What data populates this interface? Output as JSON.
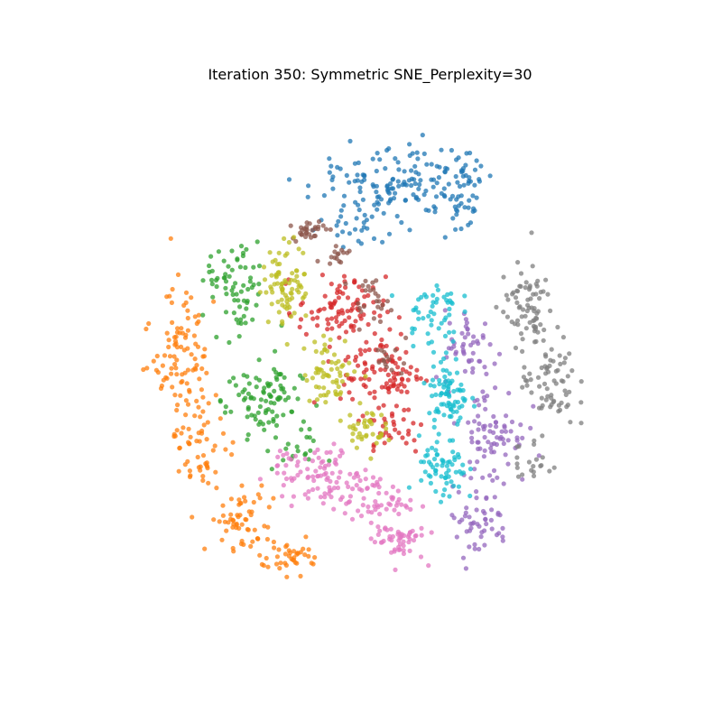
{
  "chart_data": {
    "type": "scatter",
    "title": "Iteration 350: Symmetric SNE_Perplexity=30",
    "xlabel": "",
    "ylabel": "",
    "axes_visible": false,
    "grid": false,
    "legend": "none",
    "xlim": [
      -100,
      100
    ],
    "ylim": [
      -100,
      100
    ],
    "point_alpha": 0.75,
    "series": [
      {
        "color": "#1f77b4",
        "clusters": [
          {
            "cx": 10,
            "cy": 66,
            "rx": 24,
            "ry": 14,
            "n": 150
          },
          {
            "cx": 34,
            "cy": 62,
            "rx": 5,
            "ry": 10,
            "n": 40
          },
          {
            "cx": -6,
            "cy": 50,
            "rx": 8,
            "ry": 6,
            "n": 20
          }
        ]
      },
      {
        "color": "#ff7f0e",
        "clusters": [
          {
            "cx": -68,
            "cy": 6,
            "rx": 8,
            "ry": 18,
            "n": 90
          },
          {
            "cx": -60,
            "cy": -28,
            "rx": 10,
            "ry": 14,
            "n": 60
          },
          {
            "cx": -46,
            "cy": -55,
            "rx": 10,
            "ry": 10,
            "n": 60
          },
          {
            "cx": -28,
            "cy": -68,
            "rx": 10,
            "ry": 5,
            "n": 40
          }
        ]
      },
      {
        "color": "#2ca02c",
        "clusters": [
          {
            "cx": -48,
            "cy": 26,
            "rx": 9,
            "ry": 14,
            "n": 70
          },
          {
            "cx": -38,
            "cy": -12,
            "rx": 11,
            "ry": 12,
            "n": 90
          },
          {
            "cx": -28,
            "cy": -30,
            "rx": 8,
            "ry": 6,
            "n": 20
          }
        ]
      },
      {
        "color": "#d62728",
        "clusters": [
          {
            "cx": -10,
            "cy": 20,
            "rx": 13,
            "ry": 10,
            "n": 90
          },
          {
            "cx": 4,
            "cy": -2,
            "rx": 12,
            "ry": 12,
            "n": 100
          },
          {
            "cx": 8,
            "cy": -22,
            "rx": 10,
            "ry": 8,
            "n": 30
          }
        ]
      },
      {
        "color": "#9467bd",
        "clusters": [
          {
            "cx": 36,
            "cy": 6,
            "rx": 8,
            "ry": 12,
            "n": 50
          },
          {
            "cx": 44,
            "cy": -24,
            "rx": 10,
            "ry": 16,
            "n": 80
          },
          {
            "cx": 38,
            "cy": -56,
            "rx": 10,
            "ry": 10,
            "n": 50
          }
        ]
      },
      {
        "color": "#8c564b",
        "clusters": [
          {
            "cx": -22,
            "cy": 49,
            "rx": 5,
            "ry": 3,
            "n": 30
          },
          {
            "cx": -12,
            "cy": 40,
            "rx": 4,
            "ry": 3,
            "n": 15
          },
          {
            "cx": 0,
            "cy": 24,
            "rx": 6,
            "ry": 6,
            "n": 25
          },
          {
            "cx": 8,
            "cy": 2,
            "rx": 5,
            "ry": 5,
            "n": 15
          }
        ]
      },
      {
        "color": "#e377c2",
        "clusters": [
          {
            "cx": -16,
            "cy": -40,
            "rx": 10,
            "ry": 10,
            "n": 70
          },
          {
            "cx": 2,
            "cy": -48,
            "rx": 10,
            "ry": 8,
            "n": 60
          },
          {
            "cx": 10,
            "cy": -62,
            "rx": 8,
            "ry": 6,
            "n": 50
          },
          {
            "cx": -32,
            "cy": -36,
            "rx": 6,
            "ry": 8,
            "n": 20
          }
        ]
      },
      {
        "color": "#7f7f7f",
        "clusters": [
          {
            "cx": 56,
            "cy": 22,
            "rx": 8,
            "ry": 12,
            "n": 70
          },
          {
            "cx": 64,
            "cy": -6,
            "rx": 8,
            "ry": 14,
            "n": 70
          },
          {
            "cx": 58,
            "cy": -34,
            "rx": 6,
            "ry": 8,
            "n": 20
          }
        ]
      },
      {
        "color": "#bcbd22",
        "clusters": [
          {
            "cx": -30,
            "cy": 30,
            "rx": 7,
            "ry": 12,
            "n": 80
          },
          {
            "cx": -14,
            "cy": -2,
            "rx": 8,
            "ry": 10,
            "n": 60
          },
          {
            "cx": -2,
            "cy": -22,
            "rx": 6,
            "ry": 6,
            "n": 40
          }
        ]
      },
      {
        "color": "#17becf",
        "clusters": [
          {
            "cx": 22,
            "cy": 20,
            "rx": 8,
            "ry": 10,
            "n": 50
          },
          {
            "cx": 28,
            "cy": -10,
            "rx": 6,
            "ry": 12,
            "n": 80
          },
          {
            "cx": 26,
            "cy": -38,
            "rx": 7,
            "ry": 10,
            "n": 60
          }
        ]
      }
    ]
  }
}
